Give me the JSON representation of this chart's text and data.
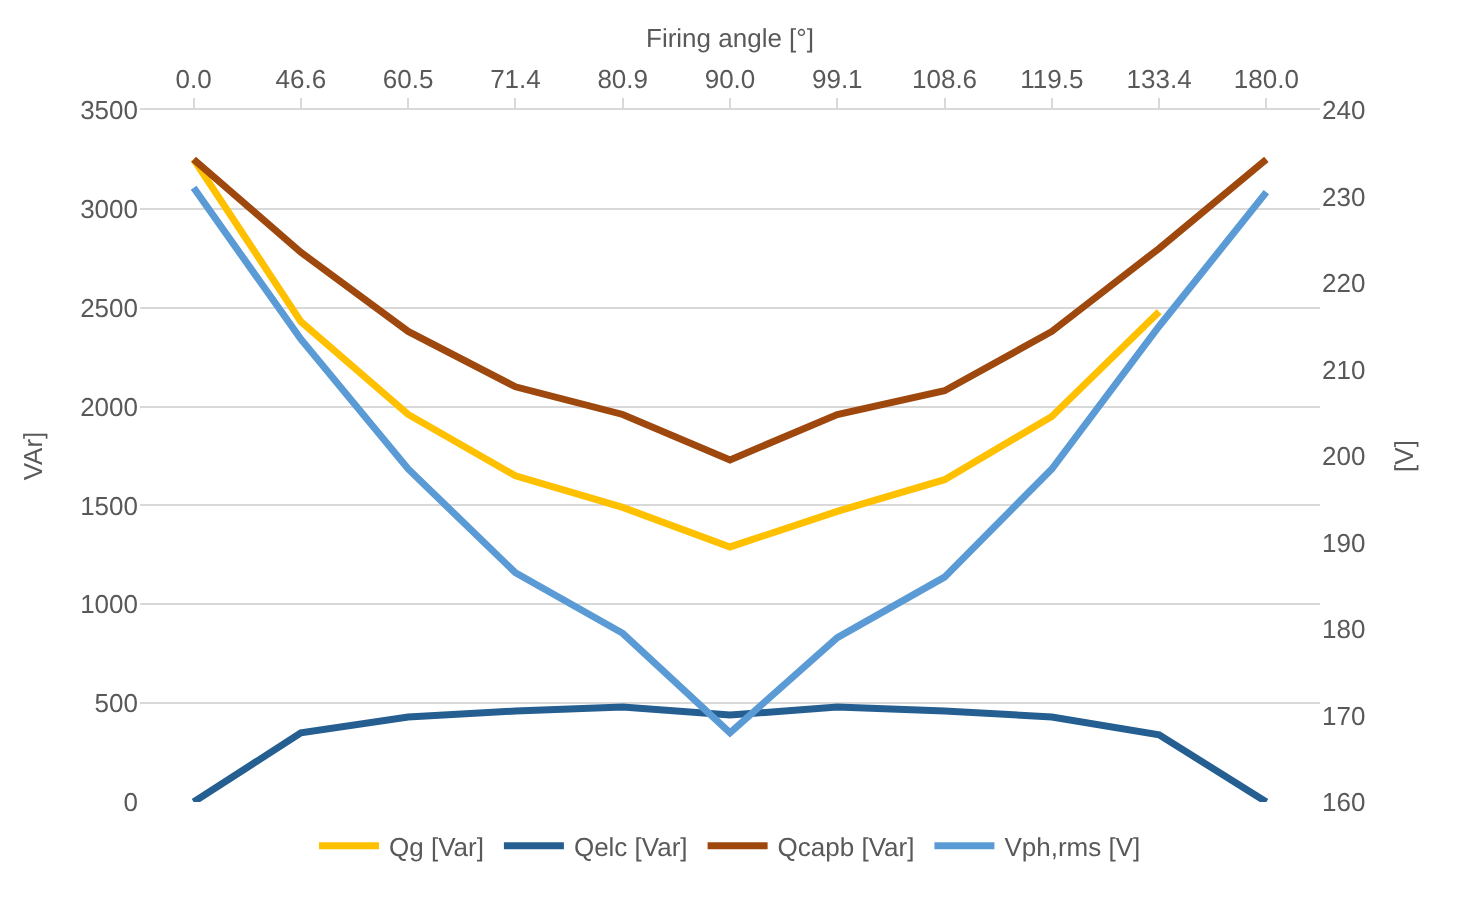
{
  "chart_data": {
    "type": "line",
    "xlabel": "Firing angle [°]",
    "ylabel": "VAr]",
    "y2label": "[V]",
    "categories": [
      "0.0",
      "46.6",
      "60.5",
      "71.4",
      "80.9",
      "90.0",
      "99.1",
      "108.6",
      "119.5",
      "133.4",
      "180.0"
    ],
    "series": [
      {
        "name": "Qg [Var]",
        "color": "#ffc000",
        "values": [
          3250,
          2430,
          1960,
          1650,
          1490,
          1290,
          1470,
          1630,
          1950,
          2480,
          null
        ]
      },
      {
        "name": "Qelc [Var]",
        "color": "#255e91",
        "values": [
          0,
          350,
          430,
          460,
          480,
          440,
          480,
          460,
          430,
          340,
          0
        ]
      },
      {
        "name": "Qcapb [Var]",
        "color": "#9e480e",
        "values": [
          3250,
          2780,
          2380,
          2100,
          1960,
          1730,
          1960,
          2080,
          2380,
          2800,
          3250
        ]
      },
      {
        "name": "Vph,rms [V]",
        "color": "#5b9bd5",
        "axis": "y2",
        "values": [
          231,
          213.5,
          198.5,
          186.5,
          179.5,
          168,
          179,
          186,
          198.5,
          215,
          230.5
        ]
      }
    ],
    "ylim": [
      0,
      3500
    ],
    "yticks": [
      0,
      500,
      1000,
      1500,
      2000,
      2500,
      3000,
      3500
    ],
    "y2lim": [
      160,
      240
    ],
    "y2ticks": [
      160,
      170,
      180,
      190,
      200,
      210,
      220,
      230,
      240
    ],
    "grid": "y",
    "legend": "bottom",
    "marker": "none",
    "line_style": "solid"
  }
}
